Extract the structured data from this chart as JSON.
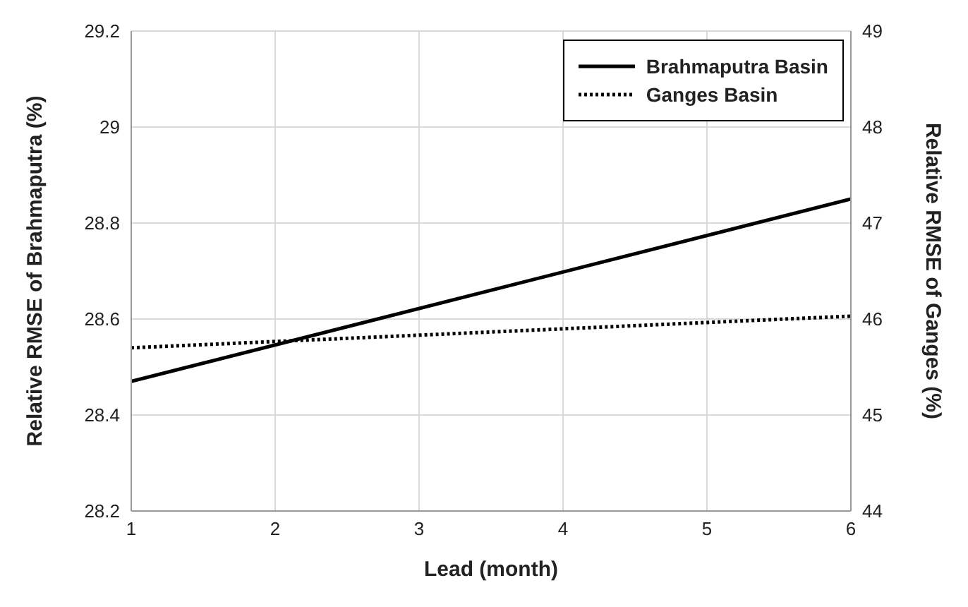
{
  "chart_data": {
    "type": "line",
    "xlabel": "Lead (month)",
    "ylabel": "Relative RMSE of Brahmaputra (%)",
    "y2label": "Relative RMSE of Ganges (%)",
    "x": [
      1,
      6
    ],
    "series": [
      {
        "name": "Brahmaputra Basin",
        "color": "#000000",
        "values": [
          28.47,
          28.85
        ],
        "line_style": "solid"
      },
      {
        "name": "Ganges Basin",
        "color": "#000000",
        "values": [
          45.7,
          46.03
        ],
        "line_style": "dotted",
        "axis": "y2"
      }
    ],
    "xlim": [
      1,
      6
    ],
    "xticks": [
      1,
      2,
      3,
      4,
      5,
      6
    ],
    "ylim": [
      28.2,
      29.2
    ],
    "yticks": [
      28.2,
      28.4,
      28.6,
      28.8,
      29,
      29.2
    ],
    "y2lim": [
      44,
      49
    ],
    "y2ticks": [
      44,
      45,
      46,
      47,
      48,
      49
    ],
    "grid": true,
    "legend": "top right",
    "marker": "none"
  }
}
